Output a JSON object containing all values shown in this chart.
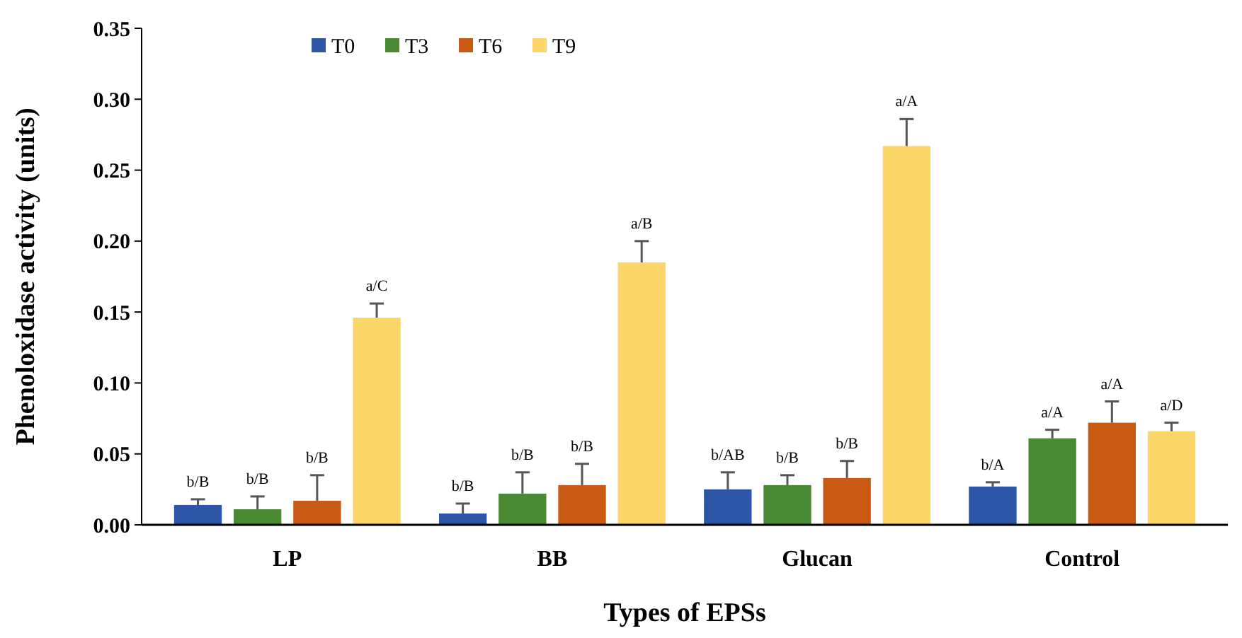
{
  "chart_data": {
    "type": "bar",
    "xlabel": "Types of EPSs",
    "ylabel": "Phenoloxidase activity (units)",
    "categories": [
      "LP",
      "BB",
      "Glucan",
      "Control"
    ],
    "series": [
      {
        "name": "T0",
        "color": "#2e56a6",
        "values": [
          0.014,
          0.008,
          0.025,
          0.027
        ],
        "errors": [
          [
            0.014,
            0.018
          ],
          [
            0.008,
            0.015
          ],
          [
            0.025,
            0.037
          ],
          [
            0.027,
            0.03
          ]
        ],
        "value_labels": [
          "b/B",
          "b/B",
          "b/AB",
          "b/A"
        ]
      },
      {
        "name": "T3",
        "color": "#4a8a34",
        "values": [
          0.011,
          0.022,
          0.028,
          0.061
        ],
        "errors": [
          [
            0.011,
            0.02
          ],
          [
            0.022,
            0.037
          ],
          [
            0.028,
            0.035
          ],
          [
            0.061,
            0.067
          ]
        ],
        "value_labels": [
          "b/B",
          "b/B",
          "b/B",
          "a/A"
        ]
      },
      {
        "name": "T6",
        "color": "#c95a14",
        "values": [
          0.017,
          0.028,
          0.033,
          0.072
        ],
        "errors": [
          [
            0.017,
            0.035
          ],
          [
            0.028,
            0.043
          ],
          [
            0.033,
            0.045
          ],
          [
            0.072,
            0.087
          ]
        ],
        "value_labels": [
          "b/B",
          "b/B",
          "b/B",
          "a/A"
        ]
      },
      {
        "name": "T9",
        "color": "#fdd66a",
        "values": [
          0.146,
          0.185,
          0.267,
          0.066
        ],
        "errors": [
          [
            0.146,
            0.156
          ],
          [
            0.185,
            0.2
          ],
          [
            0.267,
            0.286
          ],
          [
            0.066,
            0.072
          ]
        ],
        "value_labels": [
          "a/C",
          "a/B",
          "a/A",
          "a/D"
        ]
      }
    ],
    "ylim": [
      0,
      0.35
    ],
    "yticks": [
      {
        "value": 0,
        "label": "0.00"
      },
      {
        "value": 0.05,
        "label": "0.05"
      },
      {
        "value": 0.1,
        "label": "0.10"
      },
      {
        "value": 0.15,
        "label": "0.15"
      },
      {
        "value": 0.2,
        "label": "0.20"
      },
      {
        "value": 0.25,
        "label": "0.25"
      },
      {
        "value": 0.3,
        "label": "0.30"
      },
      {
        "value": 0.35,
        "label": "0.35"
      }
    ],
    "grid": false,
    "legend": "top left"
  }
}
